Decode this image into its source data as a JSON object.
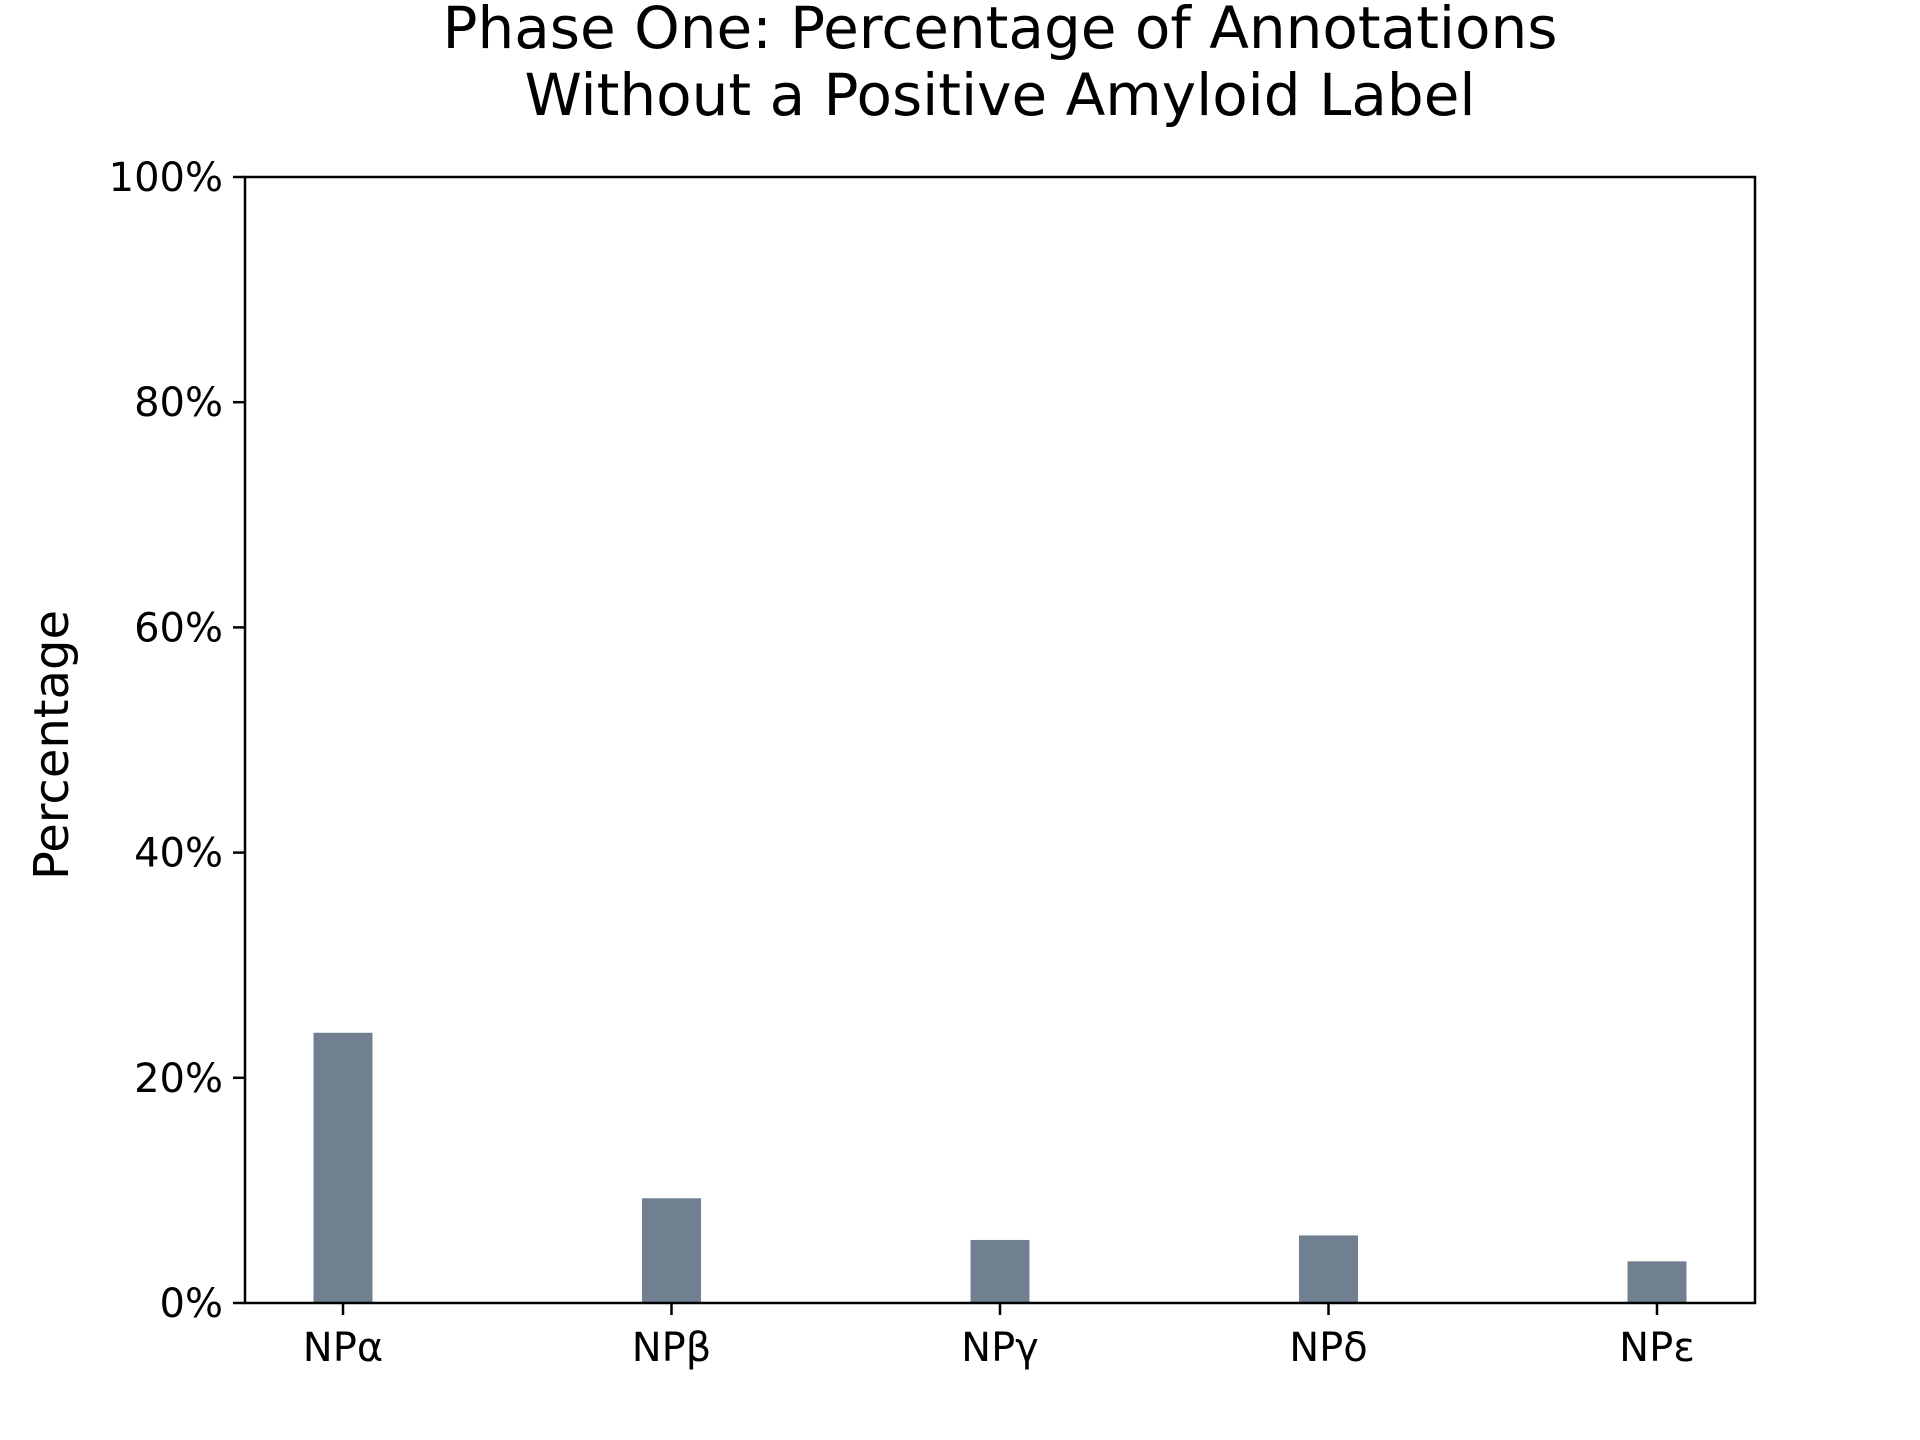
{
  "chart_data": {
    "type": "bar",
    "title": [
      "Phase One: Percentage of Annotations",
      "Without a Positive Amyloid Label"
    ],
    "xlabel": "",
    "ylabel": "Percentage",
    "categories": [
      "NPα",
      "NPβ",
      "NPγ",
      "NPδ",
      "NPε"
    ],
    "values": [
      24.0,
      9.3,
      5.6,
      6.0,
      3.7
    ],
    "ylim": [
      0,
      100
    ],
    "y_ticks": [
      0,
      20,
      40,
      60,
      80,
      100
    ],
    "y_tick_labels": [
      "0%",
      "20%",
      "40%",
      "60%",
      "80%",
      "100%"
    ],
    "bar_color": "#708090",
    "grid": false,
    "legend": "none"
  }
}
